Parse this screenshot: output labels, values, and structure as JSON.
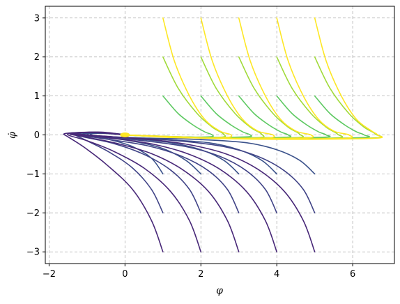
{
  "chart_data": {
    "type": "line",
    "title": "",
    "xlabel": "φ",
    "ylabel": "φ̇",
    "xlim": [
      -2.1,
      7.1
    ],
    "ylim": [
      -3.3,
      3.3
    ],
    "xticks": [
      -2,
      0,
      2,
      4,
      6
    ],
    "yticks": [
      -3,
      -2,
      -1,
      0,
      1,
      2,
      3
    ],
    "xtick_labels": [
      "−2",
      "0",
      "2",
      "4",
      "6"
    ],
    "ytick_labels": [
      "−3",
      "−2",
      "−1",
      "0",
      "1",
      "2",
      "3"
    ],
    "grid": true,
    "grid_style": "dashed",
    "legend": "none",
    "colormap": "viridis",
    "series": [
      {
        "color": "#5ec962",
        "points": [
          [
            1,
            1
          ],
          [
            1.4,
            0.55
          ],
          [
            1.8,
            0.25
          ],
          [
            2.1,
            0.08
          ],
          [
            2.3,
            0.0
          ],
          [
            2.2,
            -0.05
          ],
          [
            1.2,
            -0.05
          ],
          [
            0.4,
            -0.02
          ],
          [
            0,
            0
          ]
        ]
      },
      {
        "color": "#5ec962",
        "points": [
          [
            2,
            1
          ],
          [
            2.4,
            0.55
          ],
          [
            2.8,
            0.25
          ],
          [
            3.1,
            0.08
          ],
          [
            3.3,
            0.0
          ],
          [
            3.2,
            -0.05
          ],
          [
            2,
            -0.06
          ],
          [
            0.6,
            -0.03
          ],
          [
            0,
            0
          ]
        ]
      },
      {
        "color": "#5ec962",
        "points": [
          [
            3,
            1
          ],
          [
            3.4,
            0.55
          ],
          [
            3.8,
            0.25
          ],
          [
            4.1,
            0.08
          ],
          [
            4.3,
            0.0
          ],
          [
            4.2,
            -0.06
          ],
          [
            2.5,
            -0.07
          ],
          [
            0.8,
            -0.03
          ],
          [
            0,
            0
          ]
        ]
      },
      {
        "color": "#5ec962",
        "points": [
          [
            4,
            1
          ],
          [
            4.4,
            0.55
          ],
          [
            4.8,
            0.25
          ],
          [
            5.1,
            0.08
          ],
          [
            5.3,
            0.0
          ],
          [
            5.2,
            -0.06
          ],
          [
            3,
            -0.08
          ],
          [
            1,
            -0.04
          ],
          [
            0,
            0
          ]
        ]
      },
      {
        "color": "#5ec962",
        "points": [
          [
            5,
            1
          ],
          [
            5.4,
            0.55
          ],
          [
            5.8,
            0.25
          ],
          [
            6.1,
            0.08
          ],
          [
            6.3,
            0.0
          ],
          [
            6.2,
            -0.07
          ],
          [
            3.5,
            -0.09
          ],
          [
            1.2,
            -0.04
          ],
          [
            0,
            0
          ]
        ]
      },
      {
        "color": "#a0da39",
        "points": [
          [
            1,
            2
          ],
          [
            1.4,
            1.2
          ],
          [
            1.9,
            0.55
          ],
          [
            2.3,
            0.2
          ],
          [
            2.6,
            0.02
          ],
          [
            2.5,
            -0.06
          ],
          [
            1.3,
            -0.06
          ],
          [
            0.4,
            -0.02
          ],
          [
            0,
            0
          ]
        ]
      },
      {
        "color": "#a0da39",
        "points": [
          [
            2,
            2
          ],
          [
            2.4,
            1.2
          ],
          [
            2.9,
            0.55
          ],
          [
            3.3,
            0.2
          ],
          [
            3.6,
            0.02
          ],
          [
            3.5,
            -0.07
          ],
          [
            2,
            -0.07
          ],
          [
            0.6,
            -0.03
          ],
          [
            0,
            0
          ]
        ]
      },
      {
        "color": "#a0da39",
        "points": [
          [
            3,
            2
          ],
          [
            3.4,
            1.2
          ],
          [
            3.9,
            0.55
          ],
          [
            4.3,
            0.2
          ],
          [
            4.6,
            0.02
          ],
          [
            4.5,
            -0.07
          ],
          [
            2.5,
            -0.08
          ],
          [
            0.8,
            -0.03
          ],
          [
            0,
            0
          ]
        ]
      },
      {
        "color": "#a0da39",
        "points": [
          [
            4,
            2
          ],
          [
            4.4,
            1.2
          ],
          [
            4.9,
            0.55
          ],
          [
            5.3,
            0.2
          ],
          [
            5.6,
            0.02
          ],
          [
            5.5,
            -0.08
          ],
          [
            3,
            -0.09
          ],
          [
            1,
            -0.04
          ],
          [
            0,
            0
          ]
        ]
      },
      {
        "color": "#a0da39",
        "points": [
          [
            5,
            2
          ],
          [
            5.4,
            1.2
          ],
          [
            5.9,
            0.55
          ],
          [
            6.3,
            0.2
          ],
          [
            6.6,
            0.02
          ],
          [
            6.5,
            -0.08
          ],
          [
            3.5,
            -0.1
          ],
          [
            1.2,
            -0.04
          ],
          [
            0,
            0
          ]
        ]
      },
      {
        "color": "#fde725",
        "points": [
          [
            1,
            3
          ],
          [
            1.3,
            1.9
          ],
          [
            1.7,
            1.0
          ],
          [
            2.1,
            0.4
          ],
          [
            2.5,
            0.1
          ],
          [
            2.8,
            0.0
          ],
          [
            2.6,
            -0.07
          ],
          [
            1.3,
            -0.07
          ],
          [
            0.4,
            -0.02
          ],
          [
            0,
            0
          ]
        ]
      },
      {
        "color": "#fde725",
        "points": [
          [
            2,
            3
          ],
          [
            2.3,
            1.9
          ],
          [
            2.7,
            1.0
          ],
          [
            3.1,
            0.4
          ],
          [
            3.5,
            0.1
          ],
          [
            3.9,
            0.0
          ],
          [
            3.7,
            -0.08
          ],
          [
            2,
            -0.08
          ],
          [
            0.6,
            -0.03
          ],
          [
            0,
            0
          ]
        ]
      },
      {
        "color": "#fde725",
        "points": [
          [
            3,
            3
          ],
          [
            3.3,
            1.9
          ],
          [
            3.7,
            1.0
          ],
          [
            4.1,
            0.4
          ],
          [
            4.5,
            0.1
          ],
          [
            4.9,
            0.0
          ],
          [
            4.7,
            -0.08
          ],
          [
            2.5,
            -0.09
          ],
          [
            0.8,
            -0.03
          ],
          [
            0,
            0
          ]
        ]
      },
      {
        "color": "#fde725",
        "points": [
          [
            4,
            3
          ],
          [
            4.3,
            1.9
          ],
          [
            4.7,
            1.0
          ],
          [
            5.1,
            0.4
          ],
          [
            5.5,
            0.1
          ],
          [
            5.9,
            0.0
          ],
          [
            5.7,
            -0.09
          ],
          [
            3,
            -0.1
          ],
          [
            1,
            -0.04
          ],
          [
            0,
            0
          ]
        ]
      },
      {
        "color": "#fde725",
        "points": [
          [
            5,
            3
          ],
          [
            5.3,
            1.9
          ],
          [
            5.7,
            1.0
          ],
          [
            6.1,
            0.4
          ],
          [
            6.5,
            0.1
          ],
          [
            6.65,
            0.0
          ],
          [
            6.5,
            -0.09
          ],
          [
            3.5,
            -0.11
          ],
          [
            1.2,
            -0.04
          ],
          [
            0,
            0
          ]
        ]
      },
      {
        "color": "#3b528b",
        "points": [
          [
            1,
            -1
          ],
          [
            0.7,
            -0.6
          ],
          [
            0.2,
            -0.3
          ],
          [
            -0.4,
            -0.12
          ],
          [
            -0.8,
            -0.02
          ],
          [
            -0.9,
            0.03
          ],
          [
            -0.5,
            0.04
          ],
          [
            0,
            0
          ]
        ]
      },
      {
        "color": "#3b528b",
        "points": [
          [
            2,
            -1
          ],
          [
            1.6,
            -0.65
          ],
          [
            1,
            -0.35
          ],
          [
            0.2,
            -0.16
          ],
          [
            -0.6,
            -0.06
          ],
          [
            -1.0,
            0.02
          ],
          [
            -0.7,
            0.05
          ],
          [
            -0.2,
            0.03
          ],
          [
            0,
            0
          ]
        ]
      },
      {
        "color": "#3b528b",
        "points": [
          [
            3,
            -1
          ],
          [
            2.6,
            -0.65
          ],
          [
            2,
            -0.38
          ],
          [
            1.2,
            -0.2
          ],
          [
            0.2,
            -0.1
          ],
          [
            -0.8,
            -0.04
          ],
          [
            -1.1,
            0.03
          ],
          [
            -0.6,
            0.05
          ],
          [
            0,
            0
          ]
        ]
      },
      {
        "color": "#3b528b",
        "points": [
          [
            4,
            -1
          ],
          [
            3.6,
            -0.65
          ],
          [
            3,
            -0.38
          ],
          [
            2.2,
            -0.2
          ],
          [
            1,
            -0.12
          ],
          [
            -0.4,
            -0.06
          ],
          [
            -1.1,
            0.02
          ],
          [
            -0.7,
            0.05
          ],
          [
            0,
            0
          ]
        ]
      },
      {
        "color": "#3b528b",
        "points": [
          [
            5,
            -1
          ],
          [
            4.6,
            -0.65
          ],
          [
            4,
            -0.38
          ],
          [
            3.2,
            -0.2
          ],
          [
            2,
            -0.12
          ],
          [
            0.5,
            -0.08
          ],
          [
            -0.8,
            -0.03
          ],
          [
            -1.1,
            0.03
          ],
          [
            -0.6,
            0.05
          ],
          [
            0,
            0
          ]
        ]
      },
      {
        "color": "#414487",
        "points": [
          [
            1,
            -2
          ],
          [
            0.7,
            -1.4
          ],
          [
            0.2,
            -0.85
          ],
          [
            -0.4,
            -0.45
          ],
          [
            -1.0,
            -0.15
          ],
          [
            -1.3,
            0.0
          ],
          [
            -1.1,
            0.05
          ],
          [
            -0.5,
            0.05
          ],
          [
            0,
            0
          ]
        ]
      },
      {
        "color": "#414487",
        "points": [
          [
            2,
            -2
          ],
          [
            1.7,
            -1.4
          ],
          [
            1.2,
            -0.9
          ],
          [
            0.5,
            -0.5
          ],
          [
            -0.3,
            -0.22
          ],
          [
            -1.1,
            -0.05
          ],
          [
            -1.35,
            0.03
          ],
          [
            -0.8,
            0.06
          ],
          [
            0,
            0
          ]
        ]
      },
      {
        "color": "#414487",
        "points": [
          [
            3,
            -2
          ],
          [
            2.7,
            -1.4
          ],
          [
            2.2,
            -0.92
          ],
          [
            1.5,
            -0.55
          ],
          [
            0.6,
            -0.28
          ],
          [
            -0.4,
            -0.12
          ],
          [
            -1.2,
            -0.01
          ],
          [
            -1.3,
            0.04
          ],
          [
            -0.6,
            0.06
          ],
          [
            0,
            0
          ]
        ]
      },
      {
        "color": "#414487",
        "points": [
          [
            4,
            -2
          ],
          [
            3.7,
            -1.4
          ],
          [
            3.2,
            -0.92
          ],
          [
            2.5,
            -0.55
          ],
          [
            1.6,
            -0.3
          ],
          [
            0.5,
            -0.15
          ],
          [
            -0.6,
            -0.06
          ],
          [
            -1.3,
            0.02
          ],
          [
            -0.8,
            0.06
          ],
          [
            0,
            0
          ]
        ]
      },
      {
        "color": "#414487",
        "points": [
          [
            5,
            -2
          ],
          [
            4.7,
            -1.4
          ],
          [
            4.2,
            -0.92
          ],
          [
            3.5,
            -0.55
          ],
          [
            2.6,
            -0.3
          ],
          [
            1.5,
            -0.16
          ],
          [
            0.3,
            -0.08
          ],
          [
            -0.9,
            -0.02
          ],
          [
            -1.3,
            0.03
          ],
          [
            -0.6,
            0.06
          ],
          [
            0,
            0
          ]
        ]
      },
      {
        "color": "#482878",
        "points": [
          [
            1,
            -3
          ],
          [
            0.7,
            -2.2
          ],
          [
            0.2,
            -1.4
          ],
          [
            -0.5,
            -0.75
          ],
          [
            -1.1,
            -0.3
          ],
          [
            -1.5,
            -0.05
          ],
          [
            -1.6,
            0.03
          ],
          [
            -1.2,
            0.06
          ],
          [
            -0.5,
            0.05
          ],
          [
            0,
            0
          ]
        ]
      },
      {
        "color": "#482878",
        "points": [
          [
            2,
            -3
          ],
          [
            1.7,
            -2.2
          ],
          [
            1.2,
            -1.45
          ],
          [
            0.5,
            -0.85
          ],
          [
            -0.3,
            -0.42
          ],
          [
            -1.0,
            -0.15
          ],
          [
            -1.5,
            0.0
          ],
          [
            -1.3,
            0.06
          ],
          [
            -0.6,
            0.06
          ],
          [
            0,
            0
          ]
        ]
      },
      {
        "color": "#482878",
        "points": [
          [
            3,
            -3
          ],
          [
            2.7,
            -2.2
          ],
          [
            2.2,
            -1.45
          ],
          [
            1.5,
            -0.88
          ],
          [
            0.7,
            -0.48
          ],
          [
            -0.2,
            -0.22
          ],
          [
            -1.0,
            -0.06
          ],
          [
            -1.45,
            0.03
          ],
          [
            -0.8,
            0.07
          ],
          [
            0,
            0
          ]
        ]
      },
      {
        "color": "#482878",
        "points": [
          [
            4,
            -3
          ],
          [
            3.7,
            -2.2
          ],
          [
            3.2,
            -1.45
          ],
          [
            2.5,
            -0.88
          ],
          [
            1.7,
            -0.5
          ],
          [
            0.8,
            -0.25
          ],
          [
            -0.2,
            -0.1
          ],
          [
            -1.1,
            -0.01
          ],
          [
            -1.4,
            0.04
          ],
          [
            -0.7,
            0.07
          ],
          [
            0,
            0
          ]
        ]
      },
      {
        "color": "#482878",
        "points": [
          [
            5,
            -3
          ],
          [
            4.7,
            -2.2
          ],
          [
            4.2,
            -1.45
          ],
          [
            3.5,
            -0.88
          ],
          [
            2.7,
            -0.5
          ],
          [
            1.8,
            -0.27
          ],
          [
            0.8,
            -0.13
          ],
          [
            -0.3,
            -0.05
          ],
          [
            -1.2,
            0.02
          ],
          [
            -1.3,
            0.05
          ],
          [
            -0.6,
            0.07
          ],
          [
            0,
            0
          ]
        ]
      }
    ],
    "center_marker": {
      "x": 0,
      "y": 0,
      "color": "#fde725"
    }
  }
}
